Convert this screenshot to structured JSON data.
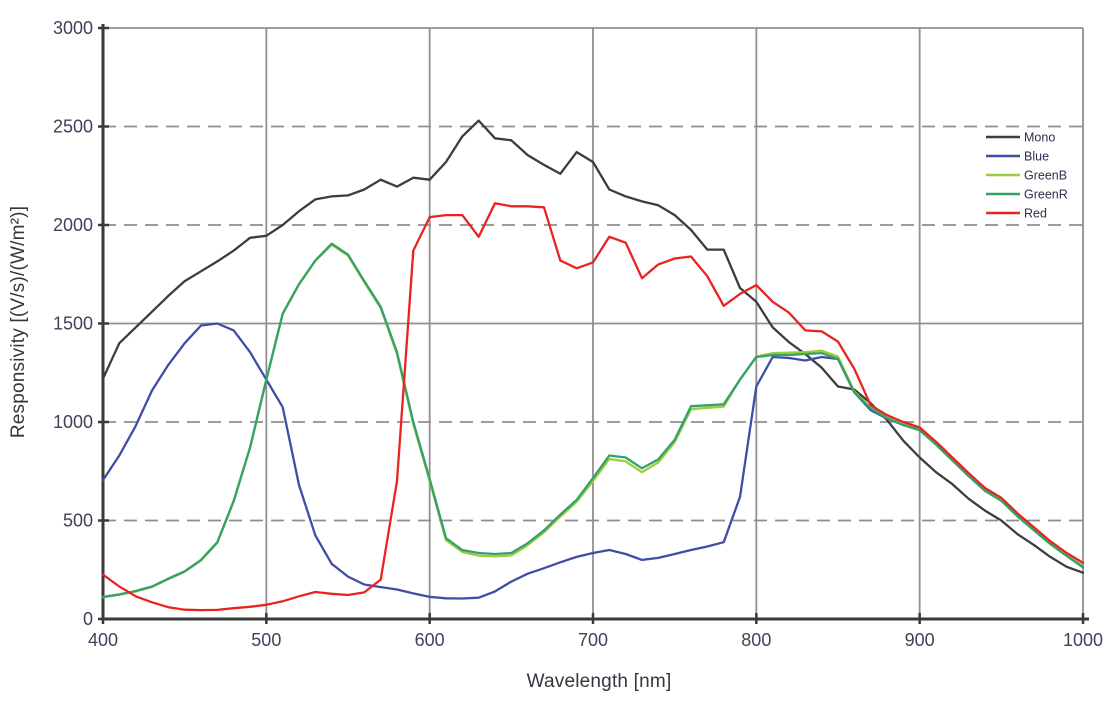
{
  "chart_data": {
    "type": "line",
    "title": "",
    "xlabel": "Wavelength [nm]",
    "ylabel": "Responsivity [(V/s)/(W/m²)]",
    "xlim": [
      400,
      1000
    ],
    "ylim": [
      0,
      3000
    ],
    "x_ticks": [
      400,
      500,
      600,
      700,
      800,
      900,
      1000
    ],
    "y_ticks": [
      0,
      500,
      1000,
      1500,
      2000,
      2500,
      3000
    ],
    "x_start": 400,
    "x_step": 10,
    "grid": {
      "vertical_style": "solid",
      "horizontal_style": "dashed",
      "horizontal_solid_at": [
        1500
      ],
      "grid_color": "#8f8f8f"
    },
    "legend": {
      "position": "top-right-inside",
      "entries": [
        "Mono",
        "Blue",
        "GreenB",
        "GreenR",
        "Red"
      ]
    },
    "series": [
      {
        "name": "Mono",
        "color": "#3d3d3d",
        "values": [
          1220,
          1400,
          1480,
          1560,
          1640,
          1715,
          1765,
          1815,
          1870,
          1935,
          1945,
          2000,
          2070,
          2130,
          2145,
          2150,
          2180,
          2230,
          2195,
          2240,
          2230,
          2320,
          2450,
          2530,
          2440,
          2430,
          2355,
          2305,
          2260,
          2370,
          2320,
          2180,
          2145,
          2120,
          2100,
          2050,
          1975,
          1875,
          1875,
          1680,
          1610,
          1480,
          1405,
          1345,
          1275,
          1180,
          1165,
          1095,
          1010,
          905,
          820,
          745,
          685,
          610,
          550,
          500,
          430,
          375,
          315,
          265,
          235
        ]
      },
      {
        "name": "Blue",
        "color": "#3f4da6",
        "values": [
          705,
          830,
          980,
          1160,
          1290,
          1400,
          1490,
          1500,
          1465,
          1355,
          1215,
          1075,
          680,
          425,
          280,
          215,
          175,
          162,
          150,
          130,
          112,
          105,
          104,
          108,
          140,
          190,
          230,
          258,
          288,
          315,
          335,
          350,
          330,
          300,
          310,
          330,
          350,
          368,
          390,
          620,
          1180,
          1330,
          1325,
          1312,
          1330,
          1320,
          1150,
          1060,
          1018,
          985,
          962,
          888,
          808,
          728,
          655,
          603,
          523,
          453,
          383,
          323,
          266
        ]
      },
      {
        "name": "GreenB",
        "color": "#9ccb3b",
        "values": [
          110,
          123,
          140,
          163,
          202,
          240,
          297,
          387,
          597,
          867,
          1212,
          1548,
          1698,
          1818,
          1900,
          1845,
          1710,
          1578,
          1345,
          990,
          700,
          400,
          340,
          322,
          318,
          323,
          375,
          440,
          520,
          595,
          700,
          812,
          800,
          745,
          795,
          898,
          1065,
          1072,
          1078,
          1215,
          1332,
          1350,
          1352,
          1355,
          1362,
          1332,
          1155,
          1072,
          1022,
          988,
          960,
          887,
          807,
          727,
          652,
          602,
          522,
          452,
          382,
          322,
          264
        ]
      },
      {
        "name": "GreenR",
        "color": "#34a169",
        "values": [
          112,
          125,
          142,
          165,
          205,
          242,
          300,
          390,
          600,
          870,
          1215,
          1550,
          1700,
          1820,
          1905,
          1850,
          1715,
          1585,
          1355,
          1000,
          710,
          410,
          350,
          335,
          330,
          335,
          385,
          450,
          530,
          605,
          715,
          830,
          820,
          765,
          810,
          910,
          1080,
          1085,
          1090,
          1215,
          1330,
          1340,
          1340,
          1345,
          1350,
          1320,
          1150,
          1068,
          1020,
          985,
          958,
          885,
          805,
          725,
          650,
          600,
          520,
          450,
          380,
          320,
          262
        ]
      },
      {
        "name": "Red",
        "color": "#e8241f",
        "values": [
          225,
          165,
          115,
          85,
          60,
          47,
          45,
          46,
          55,
          62,
          72,
          90,
          115,
          137,
          128,
          122,
          135,
          200,
          700,
          1870,
          2040,
          2050,
          2050,
          1940,
          2110,
          2095,
          2095,
          2090,
          1820,
          1780,
          1810,
          1940,
          1910,
          1730,
          1800,
          1830,
          1840,
          1740,
          1590,
          1650,
          1695,
          1610,
          1555,
          1465,
          1460,
          1408,
          1270,
          1085,
          1035,
          1000,
          972,
          900,
          820,
          740,
          665,
          615,
          535,
          465,
          395,
          335,
          285
        ]
      }
    ]
  }
}
